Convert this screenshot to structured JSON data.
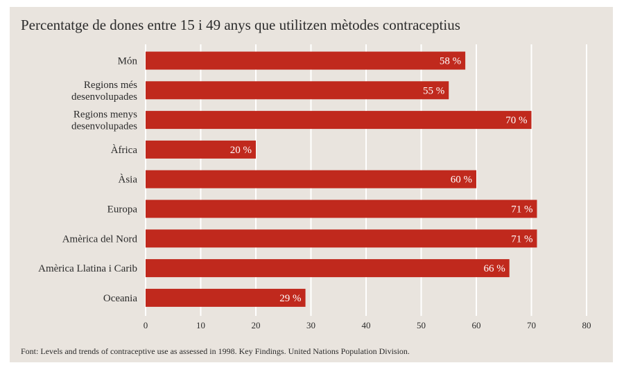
{
  "chart_data": {
    "type": "bar",
    "orientation": "horizontal",
    "title": "Percentatge de dones entre 15 i 49 anys que utilitzen mètodes contraceptius",
    "categories": [
      [
        "Món"
      ],
      [
        "Regions més",
        "desenvolupades"
      ],
      [
        "Regions menys",
        "desenvolupades"
      ],
      [
        "Àfrica"
      ],
      [
        "Àsia"
      ],
      [
        "Europa"
      ],
      [
        "Amèrica del Nord"
      ],
      [
        "Amèrica Llatina i Carib"
      ],
      [
        "Oceania"
      ]
    ],
    "values": [
      58,
      55,
      70,
      20,
      60,
      71,
      71,
      66,
      29
    ],
    "data_labels": [
      "58 %",
      "55 %",
      "70 %",
      "20 %",
      "60 %",
      "71 %",
      "71 %",
      "66 %",
      "29 %"
    ],
    "xticks": [
      "0",
      "10",
      "20",
      "30",
      "40",
      "50",
      "60",
      "70",
      "80"
    ],
    "xlim": [
      0,
      80
    ],
    "grid": "vertical",
    "bar_color": "#c0291d",
    "grid_color": "#ffffff",
    "background_color": "#e9e4de"
  },
  "source": "Font: Levels and trends of contraceptive use as assessed in 1998. Key Findings. United Nations Population Division."
}
